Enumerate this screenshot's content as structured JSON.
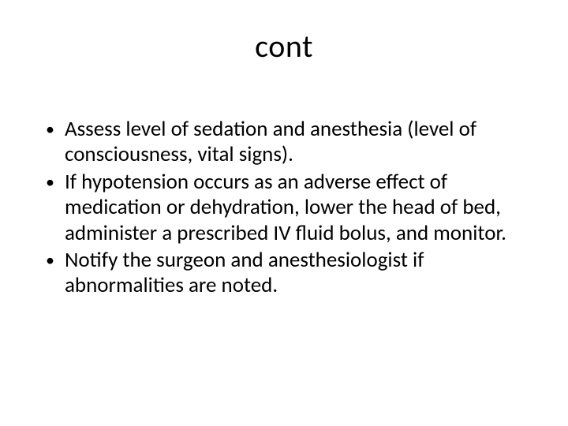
{
  "slide": {
    "title": "cont",
    "bullets": [
      " Assess level of sedation and anesthesia (level of consciousness, vital signs).",
      " If hypotension occurs as an adverse effect of medication or dehydration, lower the head of bed, administer a prescribed IV fluid bolus, and monitor.",
      " Notify the surgeon and anesthesiologist if abnormalities are noted."
    ]
  },
  "style": {
    "background_color": "#ffffff",
    "text_color": "#000000",
    "title_fontsize": 40,
    "body_fontsize": 27,
    "font_family": "Calibri"
  }
}
